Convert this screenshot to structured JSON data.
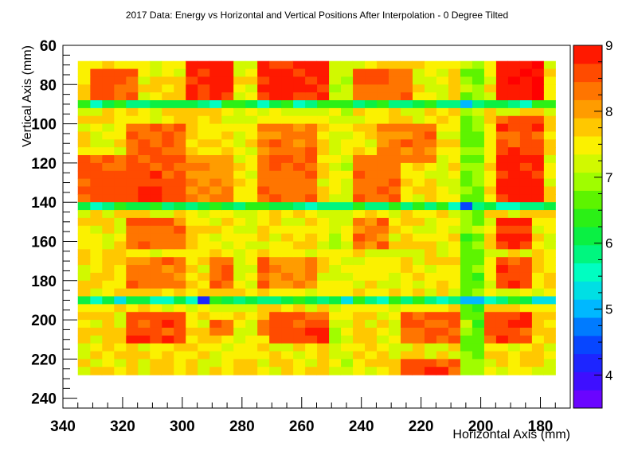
{
  "chart_data": {
    "type": "heatmap",
    "title": "2017 Data: Energy vs Horizontal and Vertical Positions After Interpolation - 0 Degree Tilted",
    "xlabel": "Horizontal Axis (mm)",
    "ylabel": "Vertical Axis (mm)",
    "x_axis": {
      "reversed": true,
      "range": [
        170,
        340
      ],
      "ticks": [
        340,
        320,
        300,
        280,
        260,
        240,
        220,
        200,
        180
      ]
    },
    "y_axis": {
      "reversed": true,
      "range": [
        60,
        245
      ],
      "ticks": [
        60,
        80,
        100,
        120,
        140,
        160,
        180,
        200,
        220,
        240
      ]
    },
    "colorbar": {
      "range": [
        3.5,
        9.0
      ],
      "ticks": [
        4,
        5,
        6,
        7,
        8,
        9
      ],
      "position": "right",
      "palette": "rainbow"
    },
    "grid": false,
    "legend": "none",
    "data_extent": {
      "x": [
        175,
        335
      ],
      "y": [
        68,
        227
      ]
    },
    "cell_size_mm": {
      "x": 4,
      "y": 4
    },
    "row_bands": [
      {
        "y": [
          89,
          93
        ],
        "value": 6.0,
        "note": "low-energy seam"
      },
      {
        "y": [
          140,
          145
        ],
        "value": 6.0,
        "note": "low-energy seam"
      },
      {
        "y": [
          187,
          193
        ],
        "value": 5.9,
        "note": "low-energy seam"
      }
    ],
    "column_bands": [
      {
        "x": [
          201,
          206
        ],
        "value": 6.8
      },
      {
        "x": [
          245,
          250
        ],
        "value": 7.3
      },
      {
        "x": [
          276,
          281
        ],
        "value": 7.4
      }
    ],
    "hot_blocks": [
      {
        "x": [
          275,
          300
        ],
        "y": [
          68,
          88
        ],
        "value": 8.8
      },
      {
        "x": [
          253,
          273
        ],
        "y": [
          68,
          88
        ],
        "value": 8.8
      },
      {
        "x": [
          315,
          330
        ],
        "y": [
          74,
          88
        ],
        "value": 8.5
      },
      {
        "x": [
          225,
          245
        ],
        "y": [
          74,
          88
        ],
        "value": 8.4
      },
      {
        "x": [
          178,
          195
        ],
        "y": [
          68,
          88
        ],
        "value": 8.9
      },
      {
        "x": [
          178,
          195
        ],
        "y": [
          98,
          115
        ],
        "value": 8.6
      },
      {
        "x": [
          178,
          195
        ],
        "y": [
          118,
          138
        ],
        "value": 8.8
      },
      {
        "x": [
          300,
          318
        ],
        "y": [
          100,
          118
        ],
        "value": 8.4
      },
      {
        "x": [
          255,
          273
        ],
        "y": [
          100,
          118
        ],
        "value": 8.3
      },
      {
        "x": [
          215,
          235
        ],
        "y": [
          100,
          118
        ],
        "value": 8.3
      },
      {
        "x": [
          318,
          335
        ],
        "y": [
          118,
          138
        ],
        "value": 8.5
      },
      {
        "x": [
          300,
          318
        ],
        "y": [
          118,
          138
        ],
        "value": 8.6
      },
      {
        "x": [
          283,
          298
        ],
        "y": [
          118,
          138
        ],
        "value": 8.2
      },
      {
        "x": [
          255,
          273
        ],
        "y": [
          118,
          138
        ],
        "value": 8.4
      },
      {
        "x": [
          228,
          245
        ],
        "y": [
          118,
          138
        ],
        "value": 8.3
      },
      {
        "x": [
          183,
          195
        ],
        "y": [
          148,
          165
        ],
        "value": 8.8
      },
      {
        "x": [
          230,
          245
        ],
        "y": [
          150,
          165
        ],
        "value": 8.3
      },
      {
        "x": [
          300,
          318
        ],
        "y": [
          148,
          165
        ],
        "value": 8.3
      },
      {
        "x": [
          270,
          290
        ],
        "y": [
          168,
          183
        ],
        "value": 8.4
      },
      {
        "x": [
          300,
          318
        ],
        "y": [
          168,
          183
        ],
        "value": 8.3
      },
      {
        "x": [
          183,
          195
        ],
        "y": [
          168,
          183
        ],
        "value": 8.6
      },
      {
        "x": [
          255,
          270
        ],
        "y": [
          168,
          183
        ],
        "value": 8.2
      },
      {
        "x": [
          300,
          320
        ],
        "y": [
          198,
          210
        ],
        "value": 8.6
      },
      {
        "x": [
          253,
          272
        ],
        "y": [
          198,
          210
        ],
        "value": 8.6
      },
      {
        "x": [
          208,
          228
        ],
        "y": [
          198,
          210
        ],
        "value": 8.5
      },
      {
        "x": [
          183,
          197
        ],
        "y": [
          198,
          210
        ],
        "value": 8.6
      },
      {
        "x": [
          208,
          228
        ],
        "y": [
          220,
          227
        ],
        "value": 8.6
      },
      {
        "x": [
          270,
          290
        ],
        "y": [
          200,
          208
        ],
        "value": 8.4
      }
    ],
    "cool_blocks": [
      {
        "x": [
          202,
          206
        ],
        "y": [
          90,
          93
        ],
        "value": 5.1
      },
      {
        "x": [
          202,
          206
        ],
        "y": [
          141,
          145
        ],
        "value": 4.4
      },
      {
        "x": [
          291,
          296
        ],
        "y": [
          188,
          192
        ],
        "value": 4.2
      },
      {
        "x": [
          242,
          247
        ],
        "y": [
          188,
          192
        ],
        "value": 5.2
      },
      {
        "x": [
          201,
          206
        ],
        "y": [
          188,
          192
        ],
        "value": 5.1
      },
      {
        "x": [
          318,
          324
        ],
        "y": [
          188,
          192
        ],
        "value": 5.4
      },
      {
        "x": [
          177,
          184
        ],
        "y": [
          188,
          192
        ],
        "value": 5.4
      },
      {
        "x": [
          183,
          188
        ],
        "y": [
          90,
          93
        ],
        "value": 5.5
      }
    ]
  }
}
